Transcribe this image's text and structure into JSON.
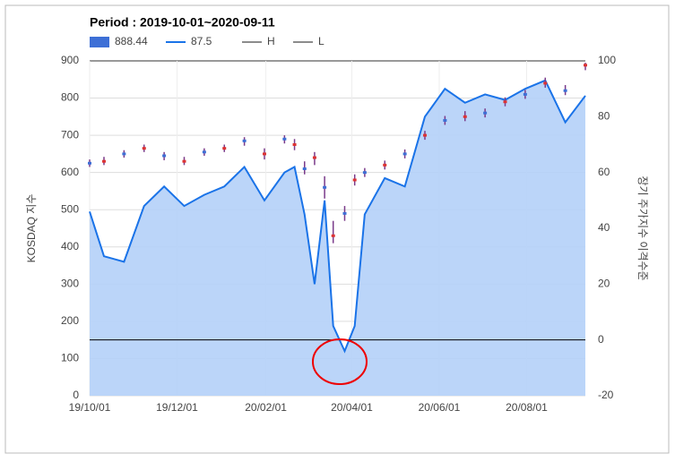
{
  "chart_data": {
    "type": "combo",
    "title": "Period : 2019-10-01~2020-09-11",
    "ylabel": "KOSDAQ 지수",
    "y2label": "장기 주가지수 이격수준",
    "x": [
      "19/10/01",
      "19/10/11",
      "19/10/25",
      "19/11/08",
      "19/11/22",
      "19/12/06",
      "19/12/20",
      "20/01/03",
      "20/01/17",
      "20/01/31",
      "20/02/14",
      "20/02/21",
      "20/02/28",
      "20/03/06",
      "20/03/13",
      "20/03/19",
      "20/03/27",
      "20/04/03",
      "20/04/10",
      "20/04/24",
      "20/05/08",
      "20/05/22",
      "20/06/05",
      "20/06/19",
      "20/07/03",
      "20/07/17",
      "20/07/31",
      "20/08/14",
      "20/08/28",
      "20/09/11"
    ],
    "series": [
      {
        "name": "888.44",
        "color": "#3d6fd6",
        "values": [
          625,
          630,
          650,
          665,
          645,
          630,
          655,
          665,
          685,
          650,
          690,
          675,
          610,
          640,
          560,
          430,
          490,
          580,
          600,
          620,
          650,
          700,
          740,
          750,
          760,
          790,
          810,
          840,
          820,
          888.44
        ]
      },
      {
        "name": "87.5",
        "color": "#1a73e8",
        "axis": "y2",
        "values": [
          46,
          30,
          28,
          48,
          55,
          48,
          52,
          55,
          62,
          50,
          60,
          62,
          45,
          20,
          50,
          5,
          -4,
          5,
          45,
          58,
          55,
          80,
          90,
          85,
          88,
          86,
          90,
          93,
          78,
          87.5
        ]
      },
      {
        "name": "H",
        "color": "#666666",
        "values": [
          635,
          642,
          660,
          675,
          655,
          642,
          665,
          675,
          695,
          665,
          700,
          690,
          630,
          655,
          590,
          470,
          510,
          595,
          612,
          632,
          662,
          712,
          752,
          765,
          772,
          802,
          822,
          855,
          835,
          895
        ]
      },
      {
        "name": "L",
        "color": "#666666",
        "values": [
          615,
          620,
          640,
          655,
          633,
          620,
          645,
          655,
          672,
          635,
          678,
          660,
          595,
          620,
          530,
          410,
          470,
          565,
          588,
          608,
          638,
          688,
          728,
          738,
          748,
          778,
          798,
          828,
          808,
          875
        ]
      }
    ],
    "xlim": [
      "19/10/01",
      "20/09/11"
    ],
    "xticks": [
      "19/10/01",
      "19/12/01",
      "20/02/01",
      "20/04/01",
      "20/06/01",
      "20/08/01"
    ],
    "ylim": [
      0,
      900
    ],
    "yticks": [
      0,
      100,
      200,
      300,
      400,
      500,
      600,
      700,
      800,
      900
    ],
    "y2lim": [
      -20,
      100
    ],
    "y2ticks": [
      -20,
      0,
      20,
      40,
      60,
      80,
      100
    ],
    "grid": true,
    "legend": "top"
  }
}
